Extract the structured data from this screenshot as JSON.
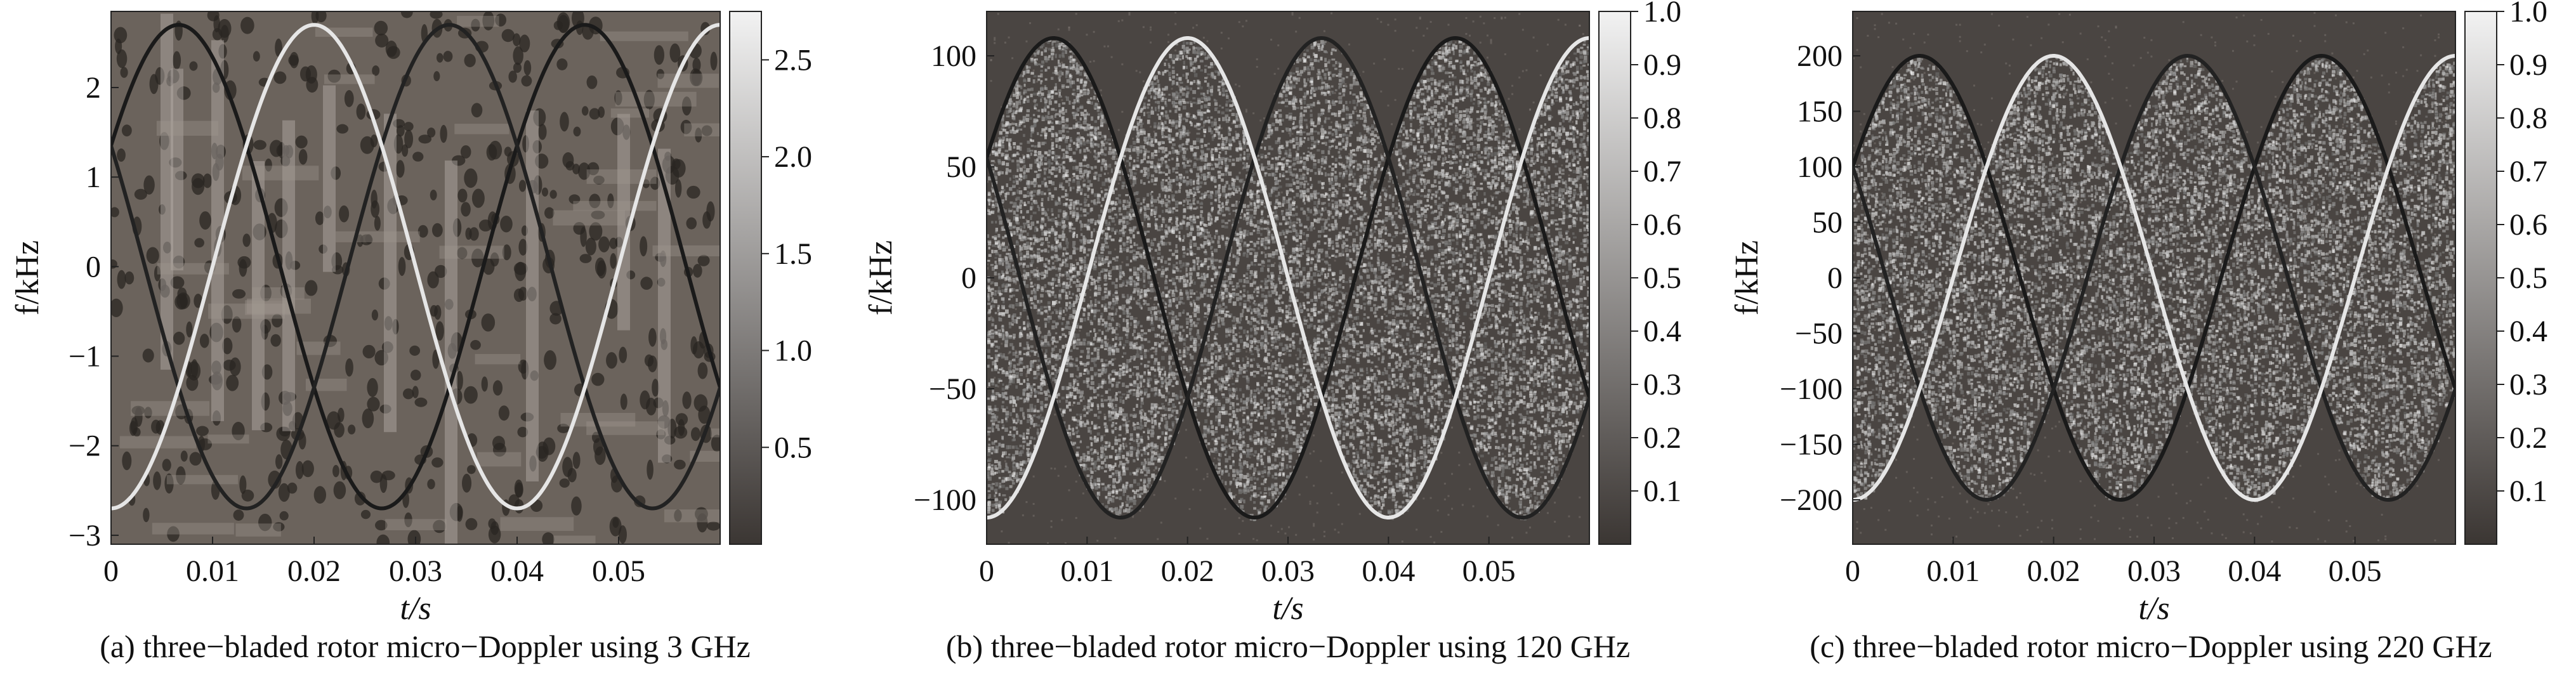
{
  "chart_data": [
    {
      "type": "heatmap",
      "caption": "(a) three−bladed rotor micro−Doppler using 3 GHz",
      "xlabel": "t/s",
      "ylabel": "f/kHz",
      "xlim": [
        0,
        0.06
      ],
      "ylim": [
        -3.1,
        2.85
      ],
      "xticks": [
        0,
        0.01,
        0.02,
        0.03,
        0.04,
        0.05
      ],
      "xtick_labels": [
        "0",
        "0.01",
        "0.02",
        "0.03",
        "0.04",
        "0.05"
      ],
      "yticks": [
        -3,
        -2,
        -1,
        0,
        1,
        2
      ],
      "ytick_labels": [
        "−3",
        "−2",
        "−1",
        "0",
        "1",
        "2"
      ],
      "colorbar": {
        "min": 0,
        "max": 2.75,
        "ticks": [
          0.5,
          1.0,
          1.5,
          2.0,
          2.5
        ],
        "tick_labels": [
          "0.5",
          "1.0",
          "1.5",
          "2.0",
          "2.5"
        ]
      },
      "colormap": "gray",
      "series": [
        {
          "amplitude": 2.7,
          "period": 0.04,
          "phase_deg": 30,
          "color": "#1a1a1a"
        },
        {
          "amplitude": 2.7,
          "period": 0.04,
          "phase_deg": 150,
          "color": "#222222"
        },
        {
          "amplitude": 2.7,
          "period": 0.04,
          "phase_deg": 270,
          "color": "#e6e6e6"
        }
      ],
      "background": "#57504b",
      "noise_style": "blobs"
    },
    {
      "type": "heatmap",
      "caption": "(b) three−bladed rotor micro−Doppler using 120 GHz",
      "xlabel": "t/s",
      "ylabel": "f/kHz",
      "xlim": [
        0,
        0.06
      ],
      "ylim": [
        -120,
        120
      ],
      "xticks": [
        0,
        0.01,
        0.02,
        0.03,
        0.04,
        0.05
      ],
      "xtick_labels": [
        "0",
        "0.01",
        "0.02",
        "0.03",
        "0.04",
        "0.05"
      ],
      "yticks": [
        -100,
        -50,
        0,
        50,
        100
      ],
      "ytick_labels": [
        "−100",
        "−50",
        "0",
        "50",
        "100"
      ],
      "colorbar": {
        "min": 0,
        "max": 1.0,
        "ticks": [
          0.1,
          0.2,
          0.3,
          0.4,
          0.5,
          0.6,
          0.7,
          0.8,
          0.9,
          1.0
        ],
        "tick_labels": [
          "0.1",
          "0.2",
          "0.3",
          "0.4",
          "0.5",
          "0.6",
          "0.7",
          "0.8",
          "0.9",
          "1.0"
        ]
      },
      "colormap": "gray",
      "series": [
        {
          "amplitude": 108,
          "period": 0.04,
          "phase_deg": 30,
          "color": "#1a1a1a"
        },
        {
          "amplitude": 108,
          "period": 0.04,
          "phase_deg": 150,
          "color": "#222222"
        },
        {
          "amplitude": 108,
          "period": 0.04,
          "phase_deg": 270,
          "color": "#e6e6e6"
        }
      ],
      "background": "#4a4542",
      "noise_style": "speckle"
    },
    {
      "type": "heatmap",
      "caption": "(c) three−bladed rotor micro−Doppler using 220 GHz",
      "xlabel": "t/s",
      "ylabel": "f/kHz",
      "xlim": [
        0,
        0.06
      ],
      "ylim": [
        -240,
        240
      ],
      "xticks": [
        0,
        0.01,
        0.02,
        0.03,
        0.04,
        0.05
      ],
      "xtick_labels": [
        "0",
        "0.01",
        "0.02",
        "0.03",
        "0.04",
        "0.05"
      ],
      "yticks": [
        -200,
        -150,
        -100,
        -50,
        0,
        50,
        100,
        150,
        200
      ],
      "ytick_labels": [
        "−200",
        "−150",
        "−100",
        "−50",
        "0",
        "50",
        "100",
        "150",
        "200"
      ],
      "colorbar": {
        "min": 0,
        "max": 1.0,
        "ticks": [
          0.1,
          0.2,
          0.3,
          0.4,
          0.5,
          0.6,
          0.7,
          0.8,
          0.9,
          1.0
        ],
        "tick_labels": [
          "0.1",
          "0.2",
          "0.3",
          "0.4",
          "0.5",
          "0.6",
          "0.7",
          "0.8",
          "0.9",
          "1.0"
        ]
      },
      "colormap": "gray",
      "series": [
        {
          "amplitude": 200,
          "period": 0.04,
          "phase_deg": 30,
          "color": "#1a1a1a"
        },
        {
          "amplitude": 200,
          "period": 0.04,
          "phase_deg": 150,
          "color": "#222222"
        },
        {
          "amplitude": 200,
          "period": 0.04,
          "phase_deg": 270,
          "color": "#e6e6e6"
        }
      ],
      "background": "#4a4542",
      "noise_style": "speckle"
    }
  ]
}
